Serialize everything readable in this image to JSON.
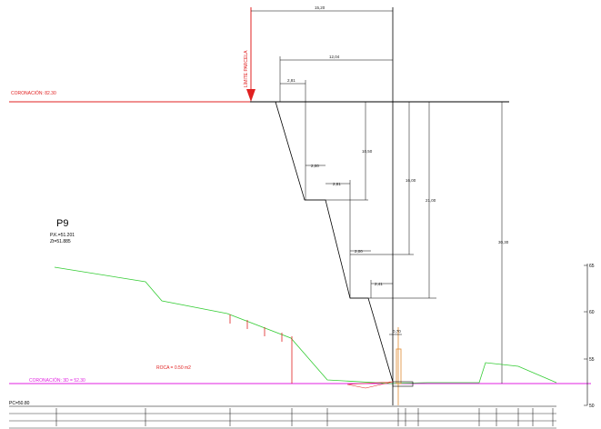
{
  "labels": {
    "limite_parcela": "LÍMITE PARCELA",
    "coronacion_top": "CORONACIÓN: 82.30",
    "coronacion_bottom": "CORONACIÓN: 3D = 52.30",
    "roca": "ROCA = 0.50 m2",
    "profile_id": "P9",
    "pk": "P.K.=51.201",
    "zt": "Zt=51.885",
    "pc": "PC=50.80"
  },
  "dimensions": {
    "d_15_20": "15,20",
    "d_12_04": "12,04",
    "d_2_81_top": "2,81",
    "d_2_00_a": "2,00",
    "d_2_81_mid": "2,81",
    "d_2_00_b": "2,00",
    "d_2_41": "2,41",
    "d_10_50": "10,50",
    "d_16_00": "16,00",
    "d_21_00": "21,00",
    "d_30_30": "30,30",
    "d_0_70": "0,70"
  },
  "scale": {
    "ticks": [
      "65",
      "60",
      "55",
      "50"
    ]
  },
  "colors": {
    "coronacion_top": "#e02020",
    "coronacion_bottom": "#e020e0",
    "terrain": "#33cc33",
    "structure": "#000000",
    "roca": "#e02020",
    "arrow": "#e02020",
    "axis": "#e08a30"
  }
}
